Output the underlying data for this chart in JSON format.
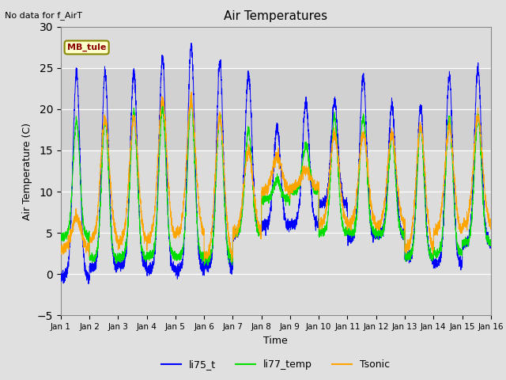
{
  "title": "Air Temperatures",
  "xlabel": "Time",
  "ylabel": "Air Temperature (C)",
  "ylim": [
    -5,
    30
  ],
  "yticks": [
    -5,
    0,
    5,
    10,
    15,
    20,
    25,
    30
  ],
  "note": "No data for f_AirT",
  "legend_label": "MB_tule",
  "legend_entries": [
    "li75_t",
    "li77_temp",
    "Tsonic"
  ],
  "colors": [
    "blue",
    "#00dd00",
    "orange"
  ],
  "fig_bg": "#e0e0e0",
  "plot_bg": "#dcdcdc",
  "n_days": 15,
  "pts_per_day": 288,
  "li75_peaks": [
    24.5,
    24.5,
    24.5,
    26.3,
    27.7,
    25.5,
    24.2,
    17.8,
    20.8,
    21.0,
    24.0,
    20.5,
    20.3,
    24.0,
    25.0
  ],
  "li75_valleys": [
    -0.3,
    0.8,
    1.0,
    0.5,
    0.5,
    0.8,
    5.0,
    5.8,
    6.0,
    8.5,
    4.5,
    4.8,
    2.0,
    1.2,
    3.8
  ],
  "li77_peaks": [
    18.5,
    18.8,
    19.5,
    20.2,
    21.0,
    19.2,
    17.5,
    11.5,
    15.5,
    19.0,
    19.0,
    16.8,
    17.8,
    19.0,
    19.0
  ],
  "li77_valleys": [
    4.5,
    1.8,
    2.0,
    2.2,
    2.0,
    1.8,
    5.0,
    9.0,
    10.0,
    5.0,
    5.0,
    4.8,
    2.0,
    2.5,
    3.8
  ],
  "tsonic_peaks": [
    7.0,
    18.8,
    18.8,
    21.0,
    21.0,
    19.0,
    15.0,
    14.2,
    12.5,
    17.0,
    17.0,
    17.0,
    17.8,
    17.8,
    19.0
  ],
  "tsonic_valleys": [
    3.0,
    4.0,
    3.8,
    4.2,
    4.8,
    2.0,
    5.0,
    10.0,
    10.5,
    6.0,
    6.0,
    5.8,
    3.0,
    5.0,
    5.8
  ],
  "peak_sharpness": 0.12,
  "noise_std": 0.35
}
